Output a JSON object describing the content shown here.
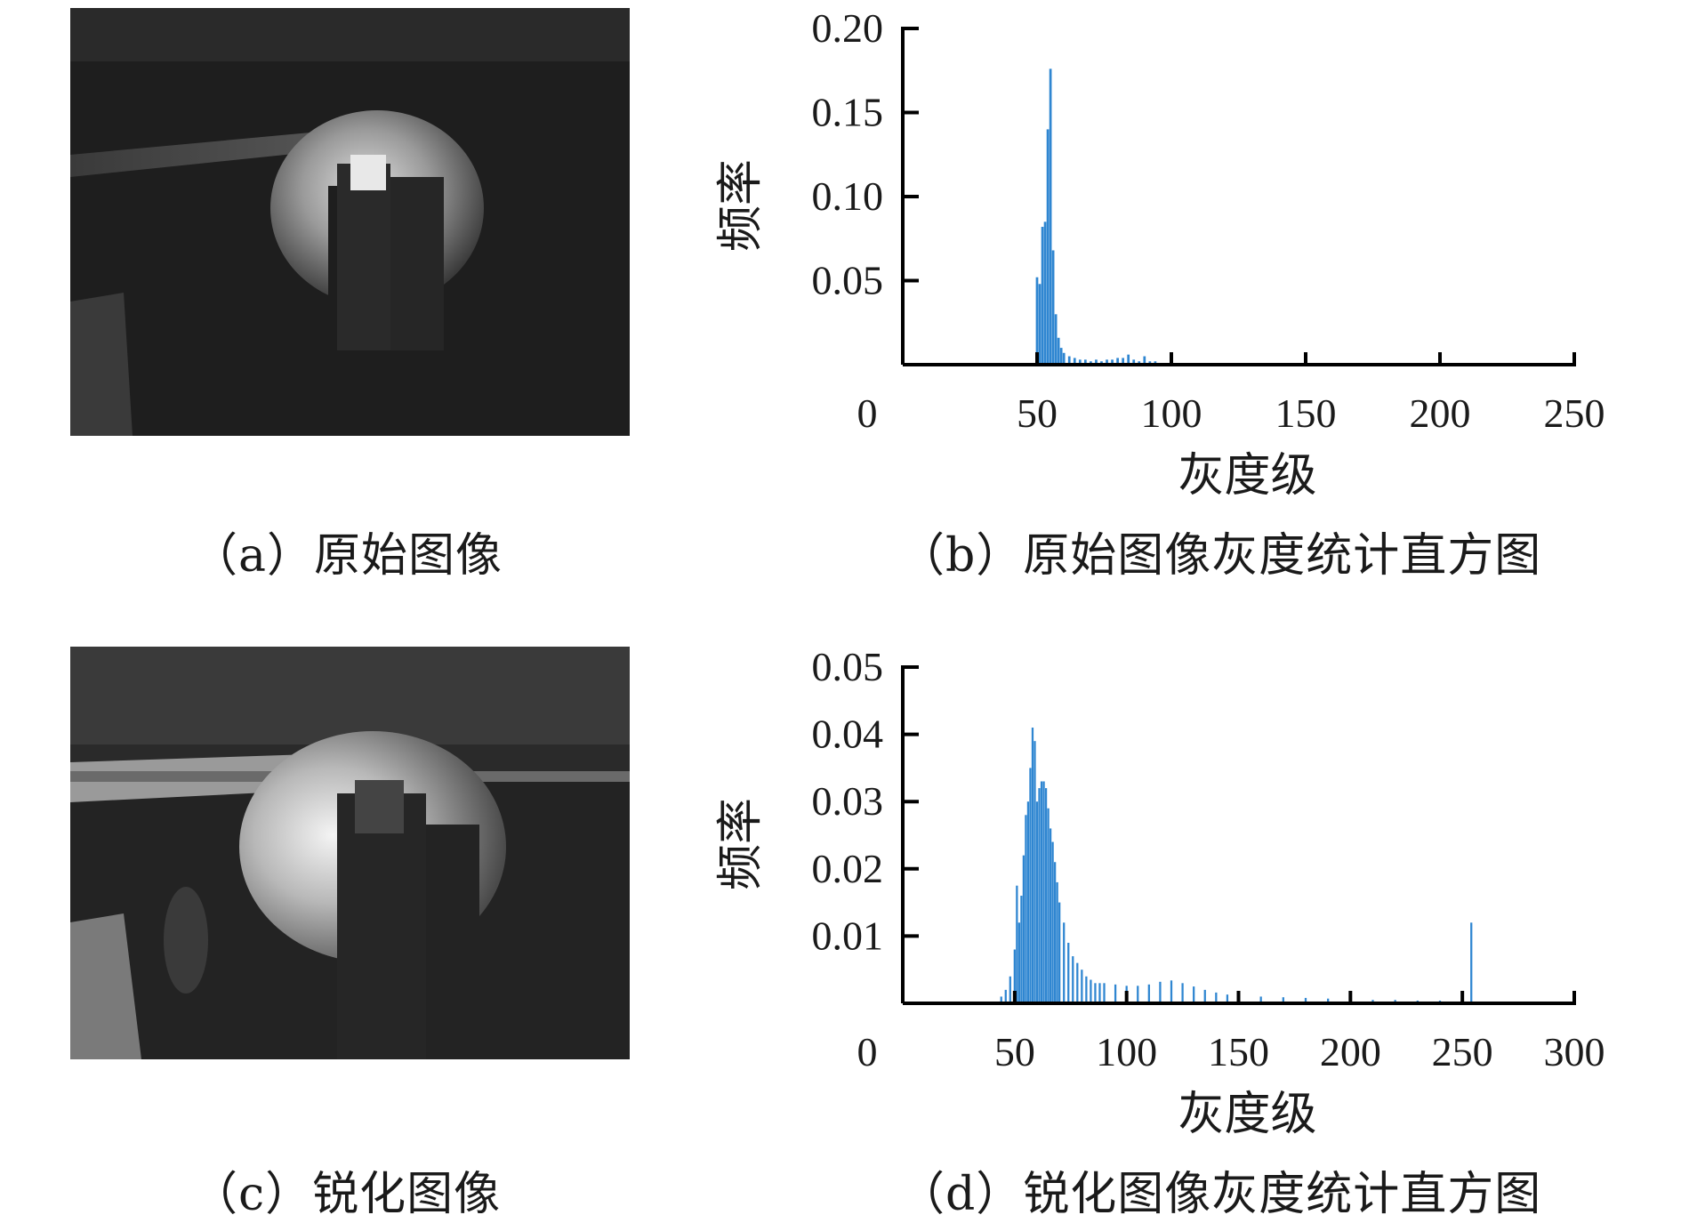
{
  "panels": {
    "a": {
      "caption": "（a）原始图像"
    },
    "b": {
      "caption": "（b）原始图像灰度统计直方图"
    },
    "c": {
      "caption": "（c）锐化图像"
    },
    "d": {
      "caption": "（d）锐化图像灰度统计直方图"
    }
  },
  "colors": {
    "bar": "#2f86d1",
    "axis": "#000000"
  },
  "chart_data": [
    {
      "type": "bar",
      "xlabel": "灰度级",
      "ylabel": "频率",
      "xlim": [
        0,
        250
      ],
      "ylim": [
        0,
        0.2
      ],
      "xticks": [
        0,
        50,
        100,
        150,
        200,
        250
      ],
      "yticks": [
        0.05,
        0.1,
        0.15,
        0.2
      ],
      "ytick_labels": [
        "0.05",
        "0.10",
        "0.15",
        "0.20"
      ],
      "x": [
        50,
        51,
        52,
        53,
        54,
        55,
        56,
        57,
        58,
        59,
        60,
        62,
        64,
        66,
        68,
        70,
        72,
        74,
        76,
        78,
        80,
        82,
        84,
        86,
        88,
        90,
        92,
        94
      ],
      "values": [
        0.052,
        0.048,
        0.082,
        0.085,
        0.14,
        0.176,
        0.068,
        0.03,
        0.016,
        0.01,
        0.007,
        0.005,
        0.004,
        0.003,
        0.003,
        0.002,
        0.003,
        0.002,
        0.003,
        0.003,
        0.004,
        0.004,
        0.006,
        0.003,
        0.002,
        0.005,
        0.002,
        0.002
      ]
    },
    {
      "type": "bar",
      "xlabel": "灰度级",
      "ylabel": "频率",
      "xlim": [
        0,
        300
      ],
      "ylim": [
        0,
        0.05
      ],
      "xticks": [
        0,
        50,
        100,
        150,
        200,
        250,
        300
      ],
      "yticks": [
        0.01,
        0.02,
        0.03,
        0.04,
        0.05
      ],
      "ytick_labels": [
        "0.01",
        "0.02",
        "0.03",
        "0.04",
        "0.05"
      ],
      "x": [
        44,
        46,
        48,
        50,
        51,
        52,
        53,
        54,
        55,
        56,
        57,
        58,
        59,
        60,
        61,
        62,
        63,
        64,
        65,
        66,
        67,
        68,
        69,
        70,
        72,
        74,
        76,
        78,
        80,
        82,
        84,
        86,
        88,
        90,
        95,
        100,
        105,
        110,
        115,
        120,
        125,
        130,
        135,
        140,
        145,
        150,
        160,
        170,
        180,
        190,
        200,
        210,
        220,
        230,
        240,
        250,
        254
      ],
      "values": [
        0.001,
        0.002,
        0.004,
        0.008,
        0.0175,
        0.012,
        0.016,
        0.022,
        0.028,
        0.03,
        0.035,
        0.041,
        0.039,
        0.03,
        0.032,
        0.033,
        0.033,
        0.032,
        0.029,
        0.026,
        0.024,
        0.021,
        0.018,
        0.015,
        0.012,
        0.009,
        0.007,
        0.006,
        0.005,
        0.004,
        0.0035,
        0.003,
        0.003,
        0.003,
        0.0028,
        0.0026,
        0.0026,
        0.0028,
        0.0032,
        0.0034,
        0.003,
        0.0025,
        0.002,
        0.0016,
        0.0013,
        0.0012,
        0.001,
        0.0009,
        0.0008,
        0.0007,
        0.0006,
        0.0005,
        0.0005,
        0.0004,
        0.0004,
        0.0004,
        0.012
      ]
    }
  ]
}
